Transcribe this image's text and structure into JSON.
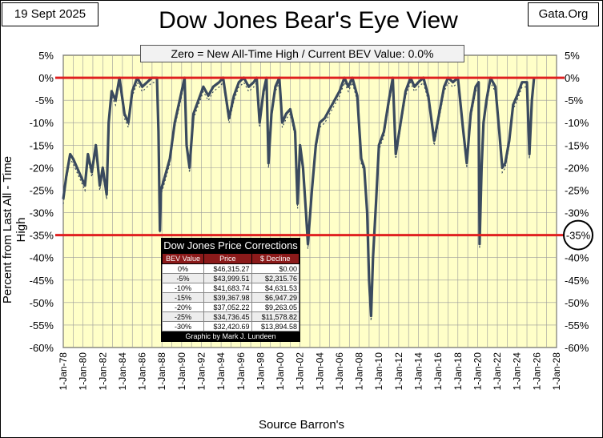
{
  "date_label": "19 Sept 2025",
  "source_label": "Gata.Org",
  "chart_data": {
    "type": "area",
    "title": "Dow Jones Bear's Eye View",
    "subtitle": "Zero = New All-Time High / Current BEV Value:  0.0%",
    "ylabel": "Percent from  Last All - Time  High",
    "xlabel": "Source Barron's",
    "ylim": [
      -60,
      5
    ],
    "ytick_labels": [
      "5%",
      "0%",
      "-5%",
      "-10%",
      "-15%",
      "-20%",
      "-25%",
      "-30%",
      "-35%",
      "-40%",
      "-45%",
      "-50%",
      "-55%",
      "-60%"
    ],
    "xtick_labels": [
      "1-Jan-78",
      "1-Jan-80",
      "1-Jan-82",
      "1-Jan-84",
      "1-Jan-86",
      "1-Jan-88",
      "1-Jan-90",
      "1-Jan-92",
      "1-Jan-94",
      "1-Jan-96",
      "1-Jan-98",
      "1-Jan-00",
      "1-Jan-02",
      "1-Jan-04",
      "1-Jan-06",
      "1-Jan-08",
      "1-Jan-10",
      "1-Jan-12",
      "1-Jan-14",
      "1-Jan-16",
      "1-Jan-18",
      "1-Jan-20",
      "1-Jan-22",
      "1-Jan-24",
      "1-Jan-26",
      "1-Jan-28"
    ],
    "xlim": [
      1978,
      2028
    ],
    "reference_lines": [
      0,
      -35
    ],
    "highlight_label": "-35%",
    "grid": true,
    "colors": {
      "background": "#ffffc8",
      "series": "#3a4a5e",
      "reference": "#e02020",
      "grid": "#9a9a9a"
    },
    "series": [
      {
        "x": [
          1978,
          1978.3,
          1978.7,
          1979,
          1979.4,
          1979.8,
          1980.2,
          1980.5,
          1980.9,
          1981.3,
          1981.7,
          1982.0,
          1982.4,
          1982.6,
          1982.9,
          1983.3,
          1983.7,
          1984.2,
          1984.6,
          1985.0,
          1985.5,
          1986.0,
          1986.5,
          1987.0,
          1987.5,
          1987.65,
          1987.8,
          1987.9,
          1988.3,
          1988.8,
          1989.3,
          1989.8,
          1990.3,
          1990.5,
          1990.8,
          1991.2,
          1991.7,
          1992.2,
          1992.7,
          1993.2,
          1993.8,
          1994.2,
          1994.8,
          1995.3,
          1995.8,
          1996.3,
          1996.8,
          1997.3,
          1997.6,
          1997.9,
          1998.3,
          1998.6,
          1998.8,
          1999.1,
          1999.5,
          1999.9,
          2000.2,
          2000.6,
          2001.0,
          2001.5,
          2001.75,
          2002.0,
          2002.3,
          2002.6,
          2002.8,
          2003.2,
          2003.6,
          2004.0,
          2004.5,
          2005.0,
          2005.5,
          2006.0,
          2006.5,
          2006.9,
          2007.3,
          2007.8,
          2008.2,
          2008.5,
          2008.8,
          2009.0,
          2009.2,
          2009.4,
          2009.7,
          2010.0,
          2010.5,
          2011.0,
          2011.4,
          2011.7,
          2012.2,
          2012.7,
          2013.2,
          2013.6,
          2014.0,
          2014.5,
          2015.0,
          2015.6,
          2016.1,
          2016.6,
          2017.0,
          2017.5,
          2018.0,
          2018.5,
          2018.9,
          2019.3,
          2019.8,
          2020.1,
          2020.2,
          2020.4,
          2020.6,
          2020.9,
          2021.3,
          2021.8,
          2022.2,
          2022.5,
          2022.8,
          2023.2,
          2023.6,
          2024.0,
          2024.5,
          2025.0,
          2025.25,
          2025.5,
          2025.72
        ],
        "y": [
          -27,
          -22,
          -17,
          -18,
          -20,
          -22,
          -24,
          -17,
          -21,
          -15,
          -24,
          -20,
          -26,
          -10,
          -3,
          -5,
          0,
          -8,
          -10,
          -3,
          0,
          -2,
          -1,
          0,
          0,
          -12,
          -34,
          -25,
          -22,
          -18,
          -10,
          -5,
          0,
          -15,
          -20,
          -8,
          -5,
          -2,
          -4,
          -2,
          -1,
          0,
          -9,
          -4,
          -1,
          0,
          -2,
          -1,
          0,
          -10,
          -3,
          0,
          -19,
          -8,
          -2,
          0,
          -10,
          -8,
          -7,
          -12,
          -28,
          -15,
          -20,
          -30,
          -37,
          -25,
          -15,
          -10,
          -9,
          -7,
          -5,
          -3,
          0,
          -2,
          0,
          -4,
          -18,
          -20,
          -30,
          -45,
          -53,
          -40,
          -28,
          -15,
          -12,
          -5,
          0,
          -17,
          -10,
          -3,
          0,
          -2,
          -1,
          0,
          -4,
          -14,
          -8,
          -2,
          0,
          -1,
          0,
          -11,
          -19,
          -8,
          -2,
          -1,
          -37,
          -20,
          -10,
          -5,
          0,
          -2,
          -12,
          -20,
          -19,
          -14,
          -6,
          -4,
          -1,
          -1,
          -17,
          -5,
          0
        ]
      }
    ],
    "table": {
      "title": "Dow Jones Price Corrections",
      "headers": [
        "BEV Value",
        "Price",
        "$ Decline"
      ],
      "rows": [
        [
          "0%",
          "$46,315.27",
          "$0.00"
        ],
        [
          "-5%",
          "$43,999.51",
          "$2,315.76"
        ],
        [
          "-10%",
          "$41,683.74",
          "$4,631.53"
        ],
        [
          "-15%",
          "$39,367.98",
          "$6,947.29"
        ],
        [
          "-20%",
          "$37,052.22",
          "$9,263.05"
        ],
        [
          "-25%",
          "$34,736.45",
          "$11,578.82"
        ],
        [
          "-30%",
          "$32,420.69",
          "$13,894.58"
        ]
      ],
      "footer": "Graphic by Mark J. Lundeen"
    }
  }
}
